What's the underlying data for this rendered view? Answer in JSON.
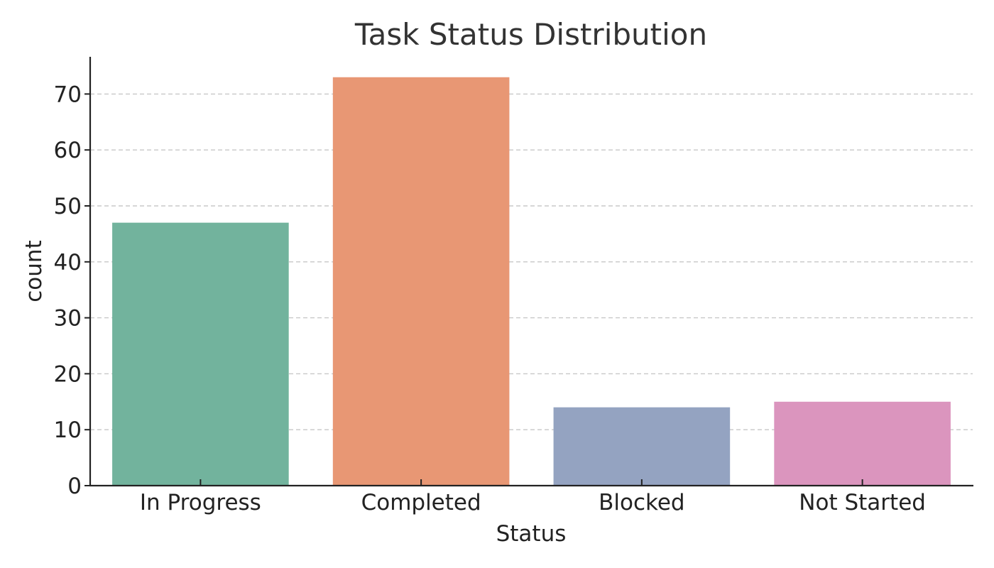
{
  "chart_data": {
    "type": "bar",
    "title": "Task Status Distribution",
    "xlabel": "Status",
    "ylabel": "count",
    "categories": [
      "In Progress",
      "Completed",
      "Blocked",
      "Not Started"
    ],
    "values": [
      47,
      73,
      14,
      15
    ],
    "colors": [
      "#72b39d",
      "#e89774",
      "#94a3c1",
      "#db95be"
    ],
    "ylim": [
      0,
      76.65
    ],
    "yticks": [
      0,
      10,
      20,
      30,
      40,
      50,
      60,
      70
    ],
    "grid": true,
    "legend": false
  }
}
